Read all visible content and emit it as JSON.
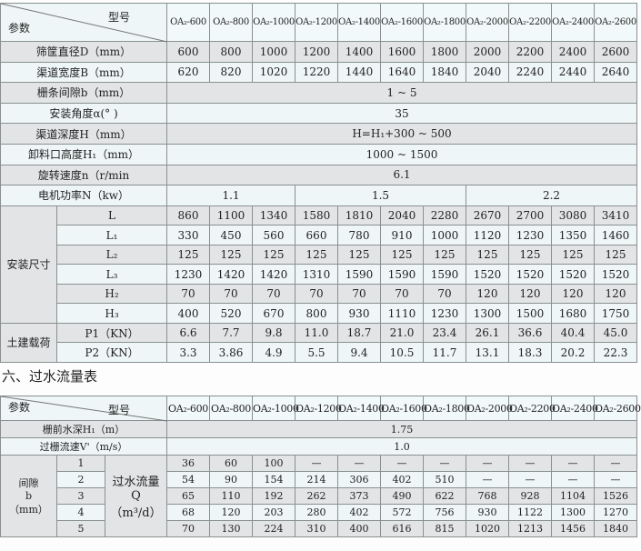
{
  "spec_table": {
    "corner_top": "型号",
    "corner_bottom": "参数",
    "models": [
      "OA₂-600",
      "OA₂-800",
      "OA₂-1000",
      "OA₂-1200",
      "OA₂-1400",
      "OA₂-1600",
      "OA₂-1800",
      "OA₂-2000",
      "OA₂-2200",
      "OA₂-2400",
      "OA₂-2600"
    ],
    "diameter": {
      "label": "筛筐直径D（mm）",
      "values": [
        "600",
        "800",
        "1000",
        "1200",
        "1400",
        "1600",
        "1800",
        "2000",
        "2200",
        "2400",
        "2600"
      ]
    },
    "width": {
      "label": "渠道宽度B（mm）",
      "values": [
        "620",
        "820",
        "1020",
        "1220",
        "1440",
        "1640",
        "1840",
        "2040",
        "2240",
        "2440",
        "2640"
      ]
    },
    "gap": {
      "label": "栅条间隙b（mm）",
      "value": "1 ~ 5"
    },
    "angle": {
      "label": "安装角度α(° )",
      "value": "35"
    },
    "depth": {
      "label": "渠道深度H（mm）",
      "value": "H=H₁+300 ~ 500"
    },
    "outlet": {
      "label": "卸料口高度H₁（mm）",
      "value": "1000 ~ 1500"
    },
    "speed": {
      "label": "旋转速度n（r/min",
      "value": "6.1"
    },
    "power": {
      "label": "电机功率N（kw）",
      "values": [
        "1.1",
        "1.5",
        "2.2"
      ]
    },
    "install": {
      "group": "安装尺寸",
      "rows": [
        {
          "label": "L",
          "values": [
            "860",
            "1100",
            "1340",
            "1580",
            "1810",
            "2040",
            "2280",
            "2670",
            "2700",
            "3080",
            "3410"
          ]
        },
        {
          "label": "L₁",
          "values": [
            "330",
            "450",
            "560",
            "660",
            "780",
            "910",
            "1000",
            "1120",
            "1230",
            "1350",
            "1460"
          ]
        },
        {
          "label": "L₂",
          "values": [
            "125",
            "125",
            "125",
            "125",
            "125",
            "125",
            "125",
            "125",
            "125",
            "125",
            "125"
          ]
        },
        {
          "label": "L₃",
          "values": [
            "1230",
            "1420",
            "1420",
            "1310",
            "1590",
            "1590",
            "1590",
            "1520",
            "1520",
            "1520",
            "1520"
          ]
        },
        {
          "label": "H₂",
          "values": [
            "70",
            "70",
            "70",
            "70",
            "70",
            "70",
            "70",
            "120",
            "120",
            "120",
            "120"
          ]
        },
        {
          "label": "H₃",
          "values": [
            "400",
            "520",
            "670",
            "800",
            "930",
            "1110",
            "1230",
            "1300",
            "1500",
            "1680",
            "1750"
          ]
        }
      ]
    },
    "load": {
      "group": "土建载荷",
      "rows": [
        {
          "label": "P1（KN）",
          "values": [
            "6.6",
            "7.7",
            "9.8",
            "11.0",
            "18.7",
            "21.0",
            "23.4",
            "26.1",
            "36.6",
            "40.4",
            "45.0"
          ]
        },
        {
          "label": "P2（KN）",
          "values": [
            "3.3",
            "3.86",
            "4.9",
            "5.5",
            "9.4",
            "10.5",
            "11.7",
            "13.1",
            "18.3",
            "20.2",
            "22.3"
          ]
        }
      ]
    }
  },
  "flow_section_title": "六、过水流量表",
  "flow_table": {
    "corner_top": "型号",
    "corner_bottom": "参数",
    "models": [
      "OA₂-600",
      "OA₂-800",
      "OA₂-1000",
      "OA₂-1200",
      "OA₂-1400",
      "OA₂-1600",
      "OA₂-1800",
      "OA₂-2000",
      "OA₂-2200",
      "OA₂-2400",
      "OA₂-2600"
    ],
    "water_depth": {
      "label": "栅前水深H₁（m）",
      "value": "1.75"
    },
    "velocity": {
      "label": "过栅流速V'（m/s）",
      "value": "1.0"
    },
    "gap_label_1": "间隙",
    "gap_label_2": "b",
    "gap_label_3": "（mm）",
    "flow_label_1": "过水流量",
    "flow_label_2": "Q",
    "flow_label_3": "（m³/d）",
    "rows": [
      {
        "gap": "1",
        "values": [
          "36",
          "60",
          "100",
          "—",
          "—",
          "—",
          "—",
          "—",
          "—",
          "—",
          "—"
        ]
      },
      {
        "gap": "2",
        "values": [
          "54",
          "90",
          "154",
          "214",
          "306",
          "402",
          "510",
          "—",
          "—",
          "—",
          "—"
        ]
      },
      {
        "gap": "3",
        "values": [
          "65",
          "110",
          "192",
          "262",
          "373",
          "490",
          "622",
          "768",
          "928",
          "1104",
          "1526"
        ]
      },
      {
        "gap": "4",
        "values": [
          "68",
          "120",
          "203",
          "280",
          "402",
          "572",
          "756",
          "930",
          "1122",
          "1300",
          "1270"
        ]
      },
      {
        "gap": "5",
        "values": [
          "70",
          "130",
          "224",
          "310",
          "400",
          "616",
          "815",
          "1020",
          "1213",
          "1456",
          "1840"
        ]
      }
    ]
  }
}
